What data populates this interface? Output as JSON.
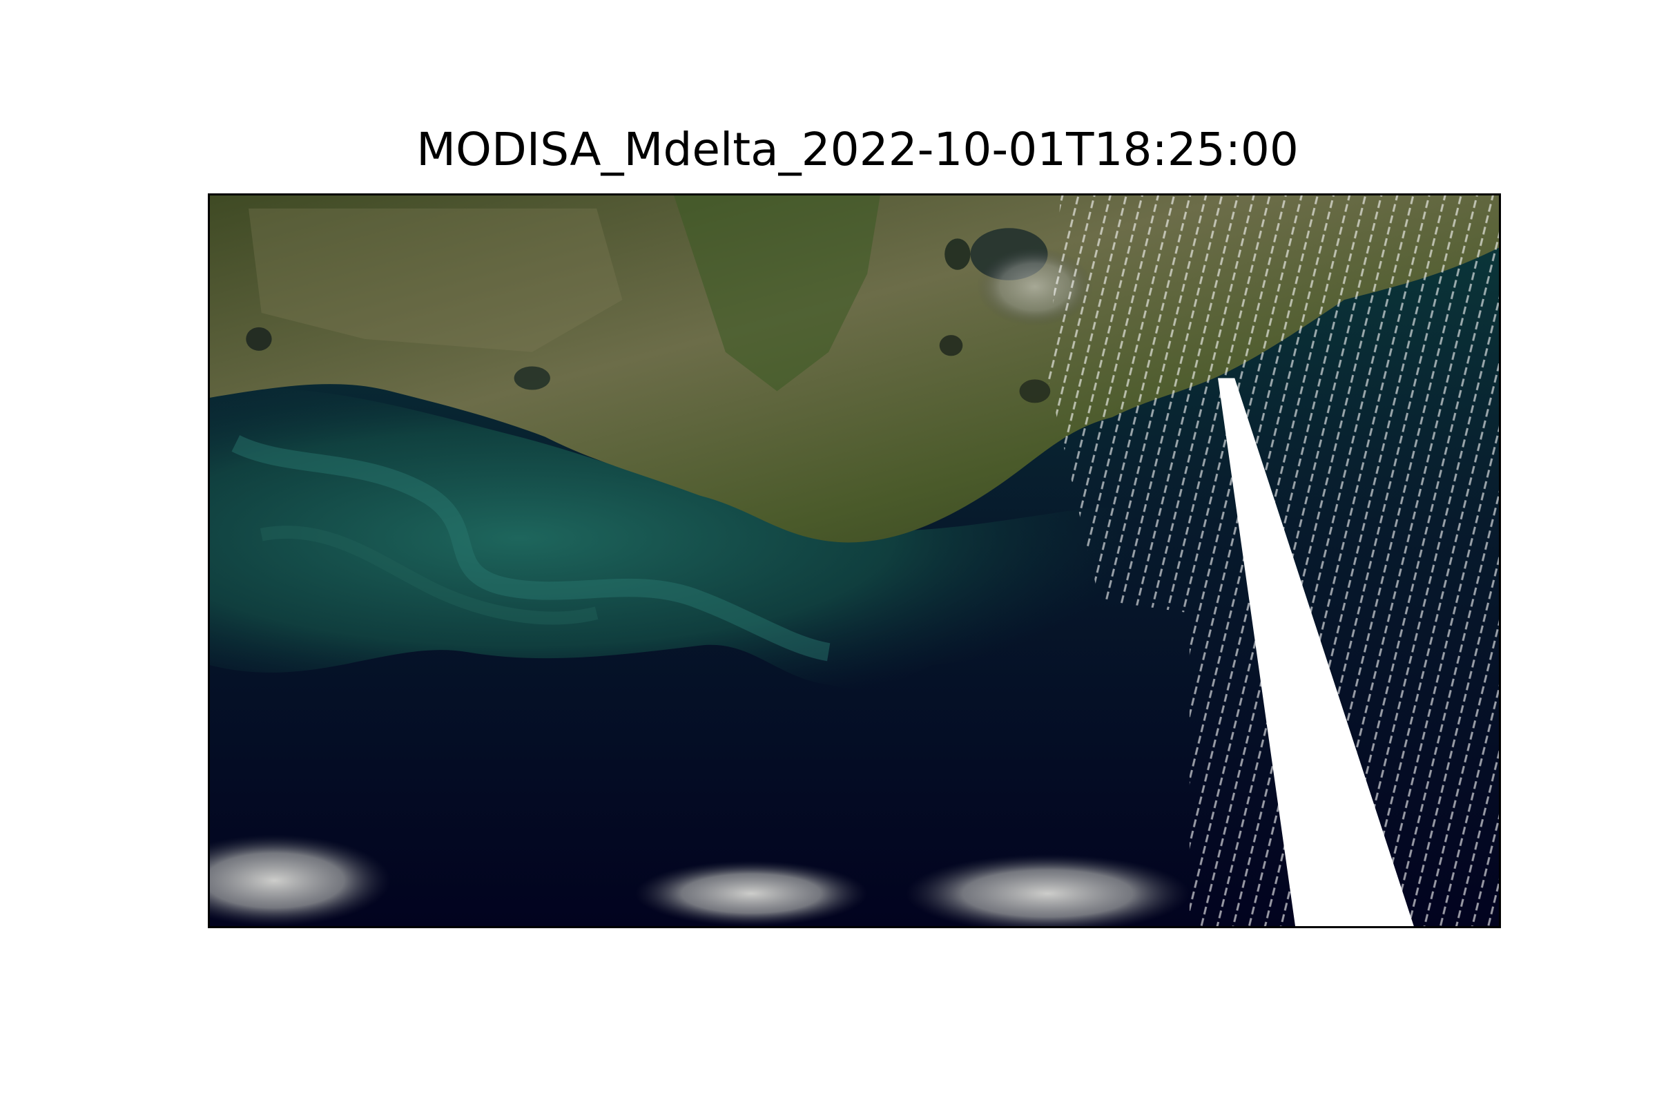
{
  "title": "MODISA_Mdelta_2022-10-01T18:25:00",
  "colors": {
    "background": "#ffffff",
    "frame": "#000000",
    "deep_ocean": "#030428",
    "shelf_water": "#0f4541",
    "land": "#4a5128",
    "no_data_gap": "#ffffff"
  }
}
